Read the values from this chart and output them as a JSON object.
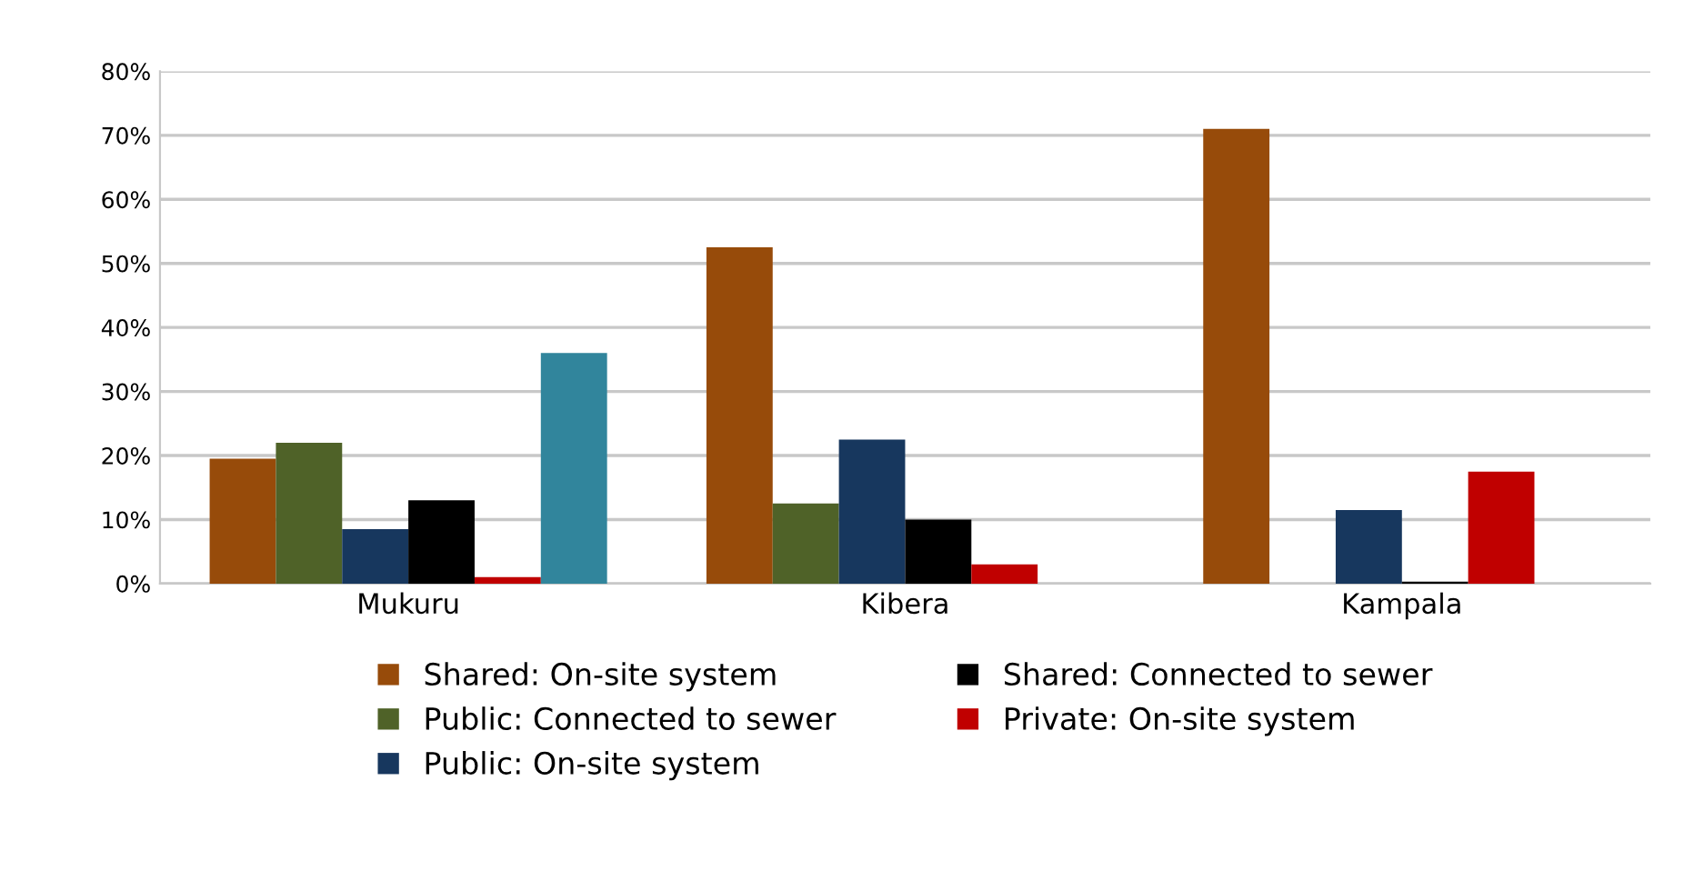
{
  "chart_data": {
    "type": "bar",
    "categories": [
      "Mukuru",
      "Kibera",
      "Kampala"
    ],
    "series": [
      {
        "name": "Shared: On-site system",
        "color": "#974b0a",
        "values": [
          19.5,
          52.5,
          71
        ]
      },
      {
        "name": "Public: Connected to sewer",
        "color": "#4f6228",
        "values": [
          22,
          12.5,
          null
        ]
      },
      {
        "name": "Public: On-site system",
        "color": "#17375e",
        "values": [
          8.5,
          22.5,
          11.5
        ]
      },
      {
        "name": "Shared: Connected to sewer",
        "color": "#000000",
        "values": [
          13,
          10,
          0.3
        ]
      },
      {
        "name": "Private: On-site system",
        "color": "#c00000",
        "values": [
          1,
          3,
          17.5
        ]
      },
      {
        "color": "#31859c",
        "values": [
          36,
          null,
          null
        ]
      }
    ],
    "ylim": [
      0,
      80
    ],
    "yticks": [
      {
        "value": 0,
        "label": "0%"
      },
      {
        "value": 10,
        "label": "10%"
      },
      {
        "value": 20,
        "label": "20%"
      },
      {
        "value": 30,
        "label": "30%"
      },
      {
        "value": 40,
        "label": "40%"
      },
      {
        "value": 50,
        "label": "50%"
      },
      {
        "value": 60,
        "label": "60%"
      },
      {
        "value": 70,
        "label": "70%"
      },
      {
        "value": 80,
        "label": "80%"
      }
    ],
    "grid": "y",
    "legend": "bottom"
  }
}
